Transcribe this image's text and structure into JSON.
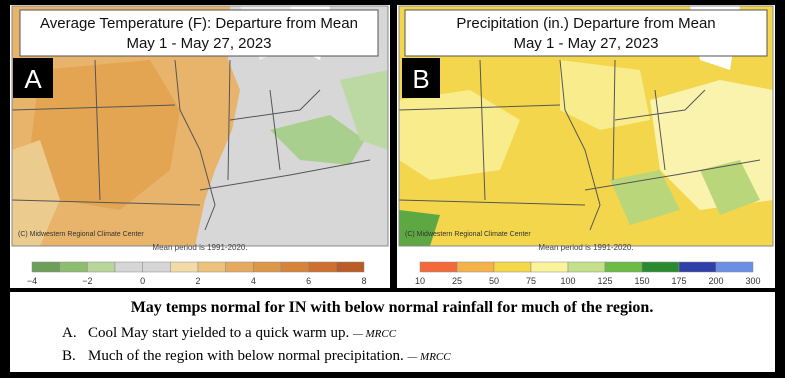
{
  "panels": [
    {
      "letter": "A",
      "title": "Average Temperature (F): Departure from Mean",
      "dates": "May 1 - May 27, 2023",
      "credit": "(C) Midwestern Regional Climate Center",
      "note": "Mean period is 1991-2020.",
      "legend_labels": [
        "−4",
        "−2",
        "0",
        "2",
        "4",
        "6",
        "8"
      ]
    },
    {
      "letter": "B",
      "title": "Precipitation (in.) Departure from Mean",
      "dates": "May 1 - May 27, 2023",
      "credit": "(C) Midwestern Regional Climate Center",
      "note": "Mean period is 1991-2020.",
      "legend_labels": [
        "10",
        "25",
        "50",
        "75",
        "100",
        "125",
        "150",
        "175",
        "200",
        "300"
      ]
    }
  ],
  "caption": {
    "heading": "May temps normal for IN with below normal rainfall for much of the region.",
    "items": [
      {
        "marker": "A.",
        "text": "Cool May start yielded to a quick warm up.",
        "source": "— MRCC"
      },
      {
        "marker": "B.",
        "text": "Much of the region with below normal precipitation.",
        "source": "— MRCC"
      }
    ]
  }
}
